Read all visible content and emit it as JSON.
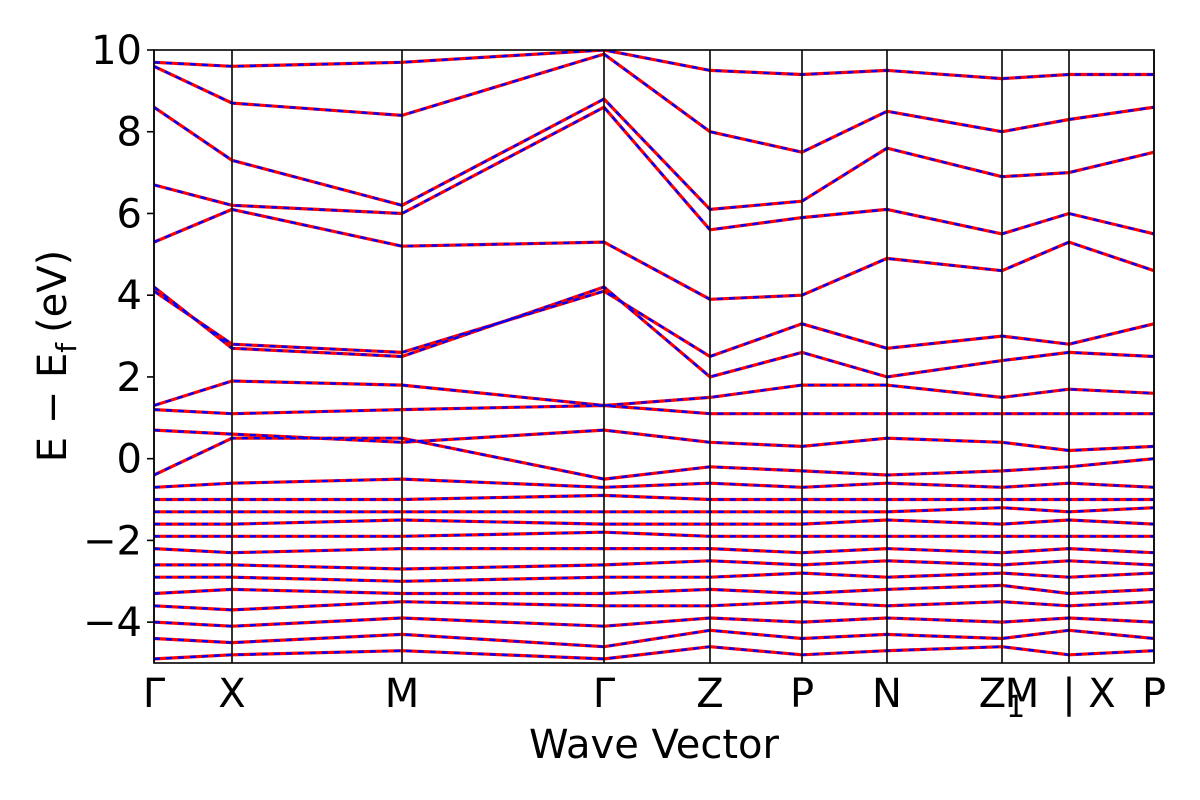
{
  "chart_data": {
    "type": "line",
    "xlabel": "Wave Vector",
    "ylabel": "E − E",
    "ylabel_subscript": "f",
    "ylabel_unit": "(eV)",
    "ylim": [
      -5,
      10
    ],
    "yticks": [
      10,
      8,
      6,
      4,
      2,
      0,
      -2,
      -4
    ],
    "ytick_labels": [
      "10",
      "8",
      "6",
      "4",
      "2",
      "0",
      "−2",
      "−4"
    ],
    "x_range": [
      0,
      1
    ],
    "kpoints": [
      {
        "label": "Γ",
        "sub": "",
        "x": 0.0
      },
      {
        "label": "X",
        "sub": "",
        "x": 0.078
      },
      {
        "label": "M",
        "sub": "",
        "x": 0.248
      },
      {
        "label": "Γ",
        "sub": "",
        "x": 0.45
      },
      {
        "label": "Z",
        "sub": "",
        "x": 0.556
      },
      {
        "label": "P",
        "sub": "",
        "x": 0.648
      },
      {
        "label": "N",
        "sub": "",
        "x": 0.733
      },
      {
        "label": "Z",
        "sub": "1",
        "x": 0.848
      },
      {
        "label": "M",
        "sub": "",
        "x": 0.868
      },
      {
        "label": "|",
        "sub": "",
        "x": 0.915
      },
      {
        "label": "X",
        "sub": "",
        "x": 0.948
      },
      {
        "label": "P",
        "sub": "",
        "x": 1.0
      }
    ],
    "segment_boundaries": [
      0.0,
      0.078,
      0.248,
      0.45,
      0.556,
      0.648,
      0.733,
      0.848,
      0.915,
      1.0
    ],
    "series": [
      {
        "color": "#ff0000",
        "style": "solid",
        "bands": [
          [
            [
              0,
              -4.9
            ],
            [
              0.078,
              -4.8
            ],
            [
              0.248,
              -4.7
            ],
            [
              0.45,
              -4.9
            ],
            [
              0.556,
              -4.6
            ],
            [
              0.648,
              -4.8
            ],
            [
              0.733,
              -4.7
            ],
            [
              0.848,
              -4.6
            ],
            [
              0.915,
              -4.8
            ],
            [
              1,
              -4.7
            ]
          ],
          [
            [
              0,
              -4.4
            ],
            [
              0.078,
              -4.5
            ],
            [
              0.248,
              -4.3
            ],
            [
              0.45,
              -4.6
            ],
            [
              0.556,
              -4.2
            ],
            [
              0.648,
              -4.4
            ],
            [
              0.733,
              -4.3
            ],
            [
              0.848,
              -4.4
            ],
            [
              0.915,
              -4.2
            ],
            [
              1,
              -4.4
            ]
          ],
          [
            [
              0,
              -4.0
            ],
            [
              0.078,
              -4.1
            ],
            [
              0.248,
              -3.9
            ],
            [
              0.45,
              -4.1
            ],
            [
              0.556,
              -3.9
            ],
            [
              0.648,
              -4.0
            ],
            [
              0.733,
              -3.9
            ],
            [
              0.848,
              -4.0
            ],
            [
              0.915,
              -3.9
            ],
            [
              1,
              -4.0
            ]
          ],
          [
            [
              0,
              -3.6
            ],
            [
              0.078,
              -3.7
            ],
            [
              0.248,
              -3.5
            ],
            [
              0.45,
              -3.6
            ],
            [
              0.556,
              -3.6
            ],
            [
              0.648,
              -3.5
            ],
            [
              0.733,
              -3.6
            ],
            [
              0.848,
              -3.5
            ],
            [
              0.915,
              -3.6
            ],
            [
              1,
              -3.5
            ]
          ],
          [
            [
              0,
              -3.3
            ],
            [
              0.078,
              -3.2
            ],
            [
              0.248,
              -3.3
            ],
            [
              0.45,
              -3.3
            ],
            [
              0.556,
              -3.2
            ],
            [
              0.648,
              -3.3
            ],
            [
              0.733,
              -3.2
            ],
            [
              0.848,
              -3.1
            ],
            [
              0.915,
              -3.3
            ],
            [
              1,
              -3.2
            ]
          ],
          [
            [
              0,
              -2.9
            ],
            [
              0.078,
              -2.9
            ],
            [
              0.248,
              -3.0
            ],
            [
              0.45,
              -2.9
            ],
            [
              0.556,
              -2.9
            ],
            [
              0.648,
              -2.8
            ],
            [
              0.733,
              -2.9
            ],
            [
              0.848,
              -2.8
            ],
            [
              0.915,
              -2.9
            ],
            [
              1,
              -2.8
            ]
          ],
          [
            [
              0,
              -2.6
            ],
            [
              0.078,
              -2.6
            ],
            [
              0.248,
              -2.7
            ],
            [
              0.45,
              -2.6
            ],
            [
              0.556,
              -2.5
            ],
            [
              0.648,
              -2.6
            ],
            [
              0.733,
              -2.5
            ],
            [
              0.848,
              -2.6
            ],
            [
              0.915,
              -2.5
            ],
            [
              1,
              -2.6
            ]
          ],
          [
            [
              0,
              -2.2
            ],
            [
              0.078,
              -2.3
            ],
            [
              0.248,
              -2.2
            ],
            [
              0.45,
              -2.2
            ],
            [
              0.556,
              -2.2
            ],
            [
              0.648,
              -2.3
            ],
            [
              0.733,
              -2.2
            ],
            [
              0.848,
              -2.3
            ],
            [
              0.915,
              -2.2
            ],
            [
              1,
              -2.3
            ]
          ],
          [
            [
              0,
              -1.9
            ],
            [
              0.078,
              -1.9
            ],
            [
              0.248,
              -1.9
            ],
            [
              0.45,
              -1.8
            ],
            [
              0.556,
              -1.9
            ],
            [
              0.648,
              -1.9
            ],
            [
              0.733,
              -1.9
            ],
            [
              0.848,
              -1.9
            ],
            [
              0.915,
              -1.9
            ],
            [
              1,
              -1.9
            ]
          ],
          [
            [
              0,
              -1.6
            ],
            [
              0.078,
              -1.6
            ],
            [
              0.248,
              -1.5
            ],
            [
              0.45,
              -1.6
            ],
            [
              0.556,
              -1.6
            ],
            [
              0.648,
              -1.6
            ],
            [
              0.733,
              -1.5
            ],
            [
              0.848,
              -1.6
            ],
            [
              0.915,
              -1.5
            ],
            [
              1,
              -1.6
            ]
          ],
          [
            [
              0,
              -1.3
            ],
            [
              0.078,
              -1.3
            ],
            [
              0.248,
              -1.3
            ],
            [
              0.45,
              -1.3
            ],
            [
              0.556,
              -1.3
            ],
            [
              0.648,
              -1.3
            ],
            [
              0.733,
              -1.3
            ],
            [
              0.848,
              -1.2
            ],
            [
              0.915,
              -1.3
            ],
            [
              1,
              -1.2
            ]
          ],
          [
            [
              0,
              -1.0
            ],
            [
              0.078,
              -1.0
            ],
            [
              0.248,
              -1.0
            ],
            [
              0.45,
              -0.9
            ],
            [
              0.556,
              -1.0
            ],
            [
              0.648,
              -1.0
            ],
            [
              0.733,
              -1.0
            ],
            [
              0.848,
              -1.0
            ],
            [
              0.915,
              -1.0
            ],
            [
              1,
              -1.0
            ]
          ],
          [
            [
              0,
              -0.7
            ],
            [
              0.078,
              -0.6
            ],
            [
              0.248,
              -0.5
            ],
            [
              0.45,
              -0.7
            ],
            [
              0.556,
              -0.6
            ],
            [
              0.648,
              -0.7
            ],
            [
              0.733,
              -0.6
            ],
            [
              0.848,
              -0.7
            ],
            [
              0.915,
              -0.6
            ],
            [
              1,
              -0.7
            ]
          ],
          [
            [
              0,
              -0.4
            ],
            [
              0.078,
              0.5
            ],
            [
              0.248,
              0.5
            ],
            [
              0.45,
              -0.5
            ],
            [
              0.556,
              -0.2
            ],
            [
              0.648,
              -0.3
            ],
            [
              0.733,
              -0.4
            ],
            [
              0.848,
              -0.3
            ],
            [
              0.915,
              -0.2
            ],
            [
              1,
              0.0
            ]
          ],
          [
            [
              0,
              0.7
            ],
            [
              0.078,
              0.6
            ],
            [
              0.248,
              0.4
            ],
            [
              0.45,
              0.7
            ],
            [
              0.556,
              0.4
            ],
            [
              0.648,
              0.3
            ],
            [
              0.733,
              0.5
            ],
            [
              0.848,
              0.4
            ],
            [
              0.915,
              0.2
            ],
            [
              1,
              0.3
            ]
          ],
          [
            [
              0,
              1.2
            ],
            [
              0.078,
              1.1
            ],
            [
              0.248,
              1.2
            ],
            [
              0.45,
              1.3
            ],
            [
              0.556,
              1.1
            ],
            [
              0.648,
              1.1
            ],
            [
              0.733,
              1.1
            ],
            [
              0.848,
              1.1
            ],
            [
              0.915,
              1.1
            ],
            [
              1,
              1.1
            ]
          ],
          [
            [
              0,
              1.3
            ],
            [
              0.078,
              1.9
            ],
            [
              0.248,
              1.8
            ],
            [
              0.45,
              1.3
            ],
            [
              0.556,
              1.5
            ],
            [
              0.648,
              1.8
            ],
            [
              0.733,
              1.8
            ],
            [
              0.848,
              1.5
            ],
            [
              0.915,
              1.7
            ],
            [
              1,
              1.6
            ]
          ],
          [
            [
              0,
              4.2
            ],
            [
              0.078,
              2.7
            ],
            [
              0.248,
              2.5
            ],
            [
              0.45,
              4.2
            ],
            [
              0.556,
              2.0
            ],
            [
              0.648,
              2.6
            ],
            [
              0.733,
              2.0
            ],
            [
              0.848,
              2.4
            ],
            [
              0.915,
              2.6
            ],
            [
              1,
              2.5
            ]
          ],
          [
            [
              0,
              4.1
            ],
            [
              0.078,
              2.8
            ],
            [
              0.248,
              2.6
            ],
            [
              0.45,
              4.1
            ],
            [
              0.556,
              2.5
            ],
            [
              0.648,
              3.3
            ],
            [
              0.733,
              2.7
            ],
            [
              0.848,
              3.0
            ],
            [
              0.915,
              2.8
            ],
            [
              1,
              3.3
            ]
          ],
          [
            [
              0,
              5.3
            ],
            [
              0.078,
              6.1
            ],
            [
              0.248,
              5.2
            ],
            [
              0.45,
              5.3
            ],
            [
              0.556,
              3.9
            ],
            [
              0.648,
              4.0
            ],
            [
              0.733,
              4.9
            ],
            [
              0.848,
              4.6
            ],
            [
              0.915,
              5.3
            ],
            [
              1,
              4.6
            ]
          ],
          [
            [
              0,
              6.7
            ],
            [
              0.078,
              6.2
            ],
            [
              0.248,
              6.0
            ],
            [
              0.45,
              8.6
            ],
            [
              0.556,
              5.6
            ],
            [
              0.648,
              5.9
            ],
            [
              0.733,
              6.1
            ],
            [
              0.848,
              5.5
            ],
            [
              0.915,
              6.0
            ],
            [
              1,
              5.5
            ]
          ],
          [
            [
              0,
              8.6
            ],
            [
              0.078,
              7.3
            ],
            [
              0.248,
              6.2
            ],
            [
              0.45,
              8.8
            ],
            [
              0.556,
              6.1
            ],
            [
              0.648,
              6.3
            ],
            [
              0.733,
              7.6
            ],
            [
              0.848,
              6.9
            ],
            [
              0.915,
              7.0
            ],
            [
              1,
              7.5
            ]
          ],
          [
            [
              0,
              9.6
            ],
            [
              0.078,
              8.7
            ],
            [
              0.248,
              8.4
            ],
            [
              0.45,
              9.9
            ],
            [
              0.556,
              8.0
            ],
            [
              0.648,
              7.5
            ],
            [
              0.733,
              8.5
            ],
            [
              0.848,
              8.0
            ],
            [
              0.915,
              8.3
            ],
            [
              1,
              8.6
            ]
          ],
          [
            [
              0,
              9.7
            ],
            [
              0.078,
              9.6
            ],
            [
              0.248,
              9.7
            ],
            [
              0.45,
              10.0
            ],
            [
              0.556,
              9.5
            ],
            [
              0.648,
              9.4
            ],
            [
              0.733,
              9.5
            ],
            [
              0.848,
              9.3
            ],
            [
              0.915,
              9.4
            ],
            [
              1,
              9.4
            ]
          ]
        ]
      },
      {
        "color": "#0000ff",
        "style": "dashed",
        "same_as_previous": true
      }
    ]
  }
}
